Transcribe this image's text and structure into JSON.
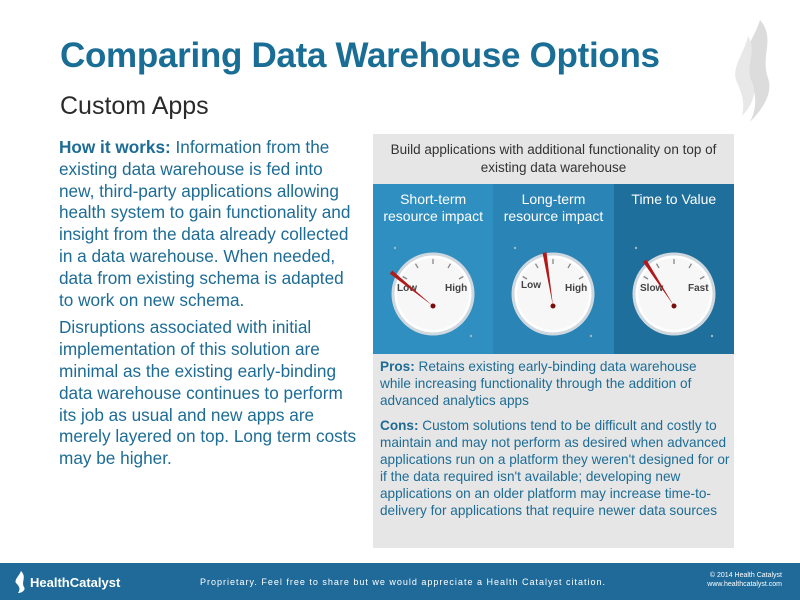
{
  "slide": {
    "title": "Comparing Data Warehouse Options",
    "subtitle": "Custom Apps"
  },
  "left": {
    "how_label": "How it works:",
    "how_text": "Information from the existing data warehouse is fed into new, third-party applications allowing health system to gain functionality and insight from the data already collected in a data warehouse. When needed, data from existing schema is adapted to work on new schema.",
    "disruptions": "Disruptions associated with initial implementation of this solution are minimal as the existing early-binding data warehouse continues to perform its job as usual and new apps are merely layered on top. Long term costs may be higher."
  },
  "panel": {
    "header": "Build applications with additional functionality on top of existing data warehouse",
    "gauges": [
      {
        "label": "Short-term resource impact",
        "low": "Low",
        "high": "High",
        "level": 0.2
      },
      {
        "label": "Long-term resource impact",
        "low": "Low",
        "high": "High",
        "level": 0.55
      },
      {
        "label": "Time to Value",
        "low": "Slow",
        "high": "Fast",
        "level": 0.35
      }
    ],
    "pros_label": "Pros:",
    "pros_text": "Retains existing early-binding data warehouse while increasing functionality through the addition of advanced analytics apps",
    "cons_label": "Cons:",
    "cons_text": "Custom solutions tend to be difficult and costly to maintain and may not perform as desired when advanced applications run on a platform they weren't designed for or if the data required isn't available; developing new applications on an older platform may increase time-to-delivery for applications that require newer data sources"
  },
  "footer": {
    "logo_text": "HealthCatalyst",
    "note": "Proprietary. Feel free to share but we would appreciate a Health Catalyst citation.",
    "copyright": "© 2014 Health Catalyst",
    "website": "www.healthcatalyst.com"
  },
  "colors": {
    "title": "#1a6e96",
    "body_text": "#1d6c95",
    "panel_bg": "#e6e6e6",
    "gauge_col_1": "#2f8fc1",
    "gauge_col_2": "#2a84b6",
    "gauge_col_3": "#1f6f9d",
    "needle": "#b01a1a",
    "footer": "#1f6a99"
  }
}
